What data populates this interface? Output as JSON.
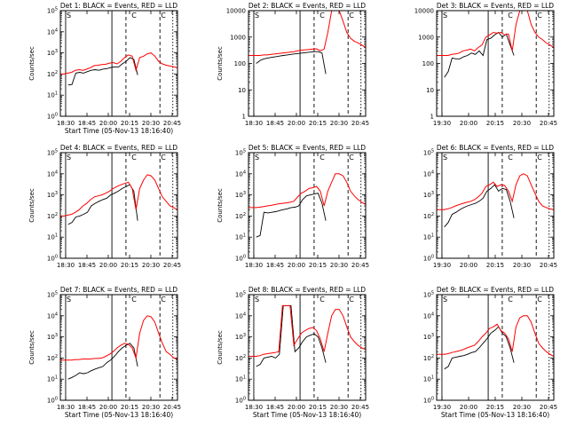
{
  "colors": {
    "events": "#000000",
    "lld": "#ff0000",
    "axes": "#000000",
    "background": "#ffffff"
  },
  "chart_data": [
    {
      "type": "line",
      "title": "Det 1: BLACK = Events, RED = LLD",
      "ylabel": "Counts/sec",
      "xlabel": "Start Time (05-Nov-13 18:16:40)",
      "x_ticks": [
        "18:30",
        "18:45",
        "20:00",
        "20:15",
        "20:30",
        "20:45"
      ],
      "y_scale": "log",
      "ylim": [
        1,
        100000
      ],
      "y_ticks": [
        "10^0",
        "10^1",
        "10^2",
        "10^3",
        "10^4",
        "10^5"
      ],
      "markers": [
        "S",
        "C",
        "C"
      ],
      "series": [
        {
          "color": "#000000",
          "y": [
            null,
            null,
            30,
            32,
            110,
            120,
            110,
            130,
            150,
            160,
            150,
            170,
            180,
            200,
            220,
            210,
            300,
            400,
            600,
            500,
            90
          ]
        },
        {
          "color": "#ff0000",
          "y": [
            100,
            100,
            110,
            120,
            150,
            160,
            150,
            170,
            200,
            250,
            260,
            280,
            290,
            330,
            350,
            300,
            400,
            600,
            800,
            700,
            150,
            600,
            700,
            900,
            1000,
            700,
            400,
            300,
            260,
            240,
            220,
            200
          ]
        }
      ]
    },
    {
      "type": "line",
      "title": "Det 2: BLACK = Events, RED = LLD",
      "ylabel": "Counts/sec",
      "xlabel": "",
      "x_ticks": [
        "18:30",
        "18:45",
        "20:00",
        "20:15",
        "20:30",
        "20:45"
      ],
      "y_scale": "log",
      "ylim": [
        1,
        10000
      ],
      "y_ticks": [
        "1",
        "10",
        "100",
        "1000",
        "10000"
      ],
      "markers": [
        "S",
        "C",
        "C"
      ],
      "series": [
        {
          "color": "#000000",
          "y": [
            null,
            null,
            100,
            130,
            150,
            160,
            170,
            180,
            190,
            200,
            210,
            220,
            230,
            240,
            250,
            260,
            270,
            280,
            280,
            250,
            40
          ]
        },
        {
          "color": "#ff0000",
          "y": [
            200,
            200,
            200,
            200,
            210,
            210,
            220,
            230,
            240,
            250,
            260,
            270,
            280,
            300,
            320,
            330,
            340,
            350,
            360,
            300,
            350,
            1500,
            10000,
            10000,
            10000,
            4000,
            1500,
            900,
            700,
            600,
            500,
            400
          ]
        }
      ]
    },
    {
      "type": "line",
      "title": "Det 3: BLACK = Events, RED = LLD",
      "ylabel": "",
      "xlabel": "",
      "x_ticks": [
        "19:30",
        "20:00",
        "20:15",
        "20:30",
        "20:45"
      ],
      "y_scale": "log",
      "ylim": [
        1,
        10000
      ],
      "y_ticks": [
        "1",
        "10",
        "100",
        "1000",
        "10000"
      ],
      "markers": [
        "S",
        "C",
        "C"
      ],
      "series": [
        {
          "color": "#000000",
          "y": [
            null,
            null,
            30,
            50,
            160,
            150,
            150,
            180,
            200,
            250,
            220,
            300,
            200,
            800,
            900,
            1200,
            1500,
            1000,
            1300,
            500,
            200
          ]
        },
        {
          "color": "#ff0000",
          "y": [
            200,
            200,
            200,
            200,
            220,
            230,
            250,
            300,
            320,
            350,
            300,
            400,
            500,
            1000,
            1200,
            1500,
            1400,
            1500,
            1200,
            1300,
            300,
            3000,
            10000,
            10000,
            10000,
            3000,
            1500,
            1000,
            800,
            600,
            500,
            400
          ]
        }
      ]
    },
    {
      "type": "line",
      "title": "Det 4: BLACK = Events, RED = LLD",
      "ylabel": "Counts/sec",
      "xlabel": "",
      "x_ticks": [
        "18:30",
        "18:45",
        "20:00",
        "20:15",
        "20:30",
        "20:45"
      ],
      "y_scale": "log",
      "ylim": [
        1,
        100000
      ],
      "y_ticks": [
        "10^0",
        "10^1",
        "10^2",
        "10^3",
        "10^4",
        "10^5"
      ],
      "markers": [
        "S",
        "C",
        "C"
      ],
      "series": [
        {
          "color": "#000000",
          "y": [
            null,
            null,
            40,
            50,
            90,
            100,
            120,
            150,
            300,
            400,
            500,
            600,
            700,
            1000,
            1200,
            1500,
            2000,
            2500,
            3000,
            1500,
            60
          ]
        },
        {
          "color": "#ff0000",
          "y": [
            100,
            100,
            110,
            120,
            150,
            200,
            300,
            400,
            600,
            800,
            900,
            1000,
            1200,
            1500,
            2000,
            2500,
            3000,
            3500,
            4000,
            2000,
            200,
            2000,
            5000,
            9000,
            8000,
            5000,
            2000,
            800,
            500,
            300,
            250,
            200
          ]
        }
      ]
    },
    {
      "type": "line",
      "title": "Det 5: BLACK = Events, RED = LLD",
      "ylabel": "Counts/sec",
      "xlabel": "",
      "x_ticks": [
        "18:30",
        "18:45",
        "20:00",
        "20:15",
        "20:30",
        "20:45"
      ],
      "y_scale": "log",
      "ylim": [
        1,
        100000
      ],
      "y_ticks": [
        "10^0",
        "10^1",
        "10^2",
        "10^3",
        "10^4",
        "10^5"
      ],
      "markers": [
        "S",
        "C",
        "C"
      ],
      "series": [
        {
          "color": "#000000",
          "y": [
            null,
            null,
            10,
            12,
            150,
            140,
            150,
            160,
            180,
            200,
            220,
            250,
            260,
            300,
            600,
            900,
            1000,
            1100,
            1200,
            400,
            60
          ]
        },
        {
          "color": "#ff0000",
          "y": [
            250,
            250,
            250,
            260,
            280,
            300,
            320,
            350,
            380,
            400,
            420,
            450,
            500,
            800,
            1200,
            1500,
            2000,
            2200,
            2500,
            1500,
            300,
            1500,
            4000,
            10000,
            10000,
            8000,
            4000,
            1500,
            900,
            600,
            450,
            350
          ]
        }
      ]
    },
    {
      "type": "line",
      "title": "Det 6: BLACK = Events, RED = LLD",
      "ylabel": "",
      "xlabel": "",
      "x_ticks": [
        "19:30",
        "20:00",
        "20:15",
        "20:30",
        "20:45"
      ],
      "y_scale": "log",
      "ylim": [
        1,
        100000
      ],
      "y_ticks": [
        "10^0",
        "10^1",
        "10^2",
        "10^3",
        "10^4",
        "10^5"
      ],
      "markers": [
        "S",
        "C",
        "C"
      ],
      "series": [
        {
          "color": "#000000",
          "y": [
            null,
            null,
            30,
            50,
            120,
            150,
            200,
            250,
            300,
            350,
            400,
            500,
            700,
            1500,
            2000,
            3000,
            1500,
            2000,
            1800,
            500,
            80
          ]
        },
        {
          "color": "#ff0000",
          "y": [
            200,
            200,
            200,
            220,
            250,
            300,
            350,
            400,
            450,
            500,
            600,
            800,
            1200,
            2500,
            3000,
            4000,
            2500,
            3000,
            2800,
            1500,
            500,
            3000,
            8000,
            10000,
            8000,
            3000,
            1200,
            500,
            300,
            250,
            220,
            200
          ]
        }
      ]
    },
    {
      "type": "line",
      "title": "Det 7: BLACK = Events, RED = LLD",
      "ylabel": "Counts/sec",
      "xlabel": "Start Time (05-Nov-13 18:16:40)",
      "x_ticks": [
        "18:30",
        "18:45",
        "20:00",
        "20:15",
        "20:30",
        "20:45"
      ],
      "y_scale": "log",
      "ylim": [
        1,
        100000
      ],
      "y_ticks": [
        "10^0",
        "10^1",
        "10^2",
        "10^3",
        "10^4",
        "10^5"
      ],
      "markers": [
        "S",
        "C",
        "C"
      ],
      "series": [
        {
          "color": "#000000",
          "y": [
            null,
            null,
            10,
            12,
            15,
            20,
            18,
            20,
            25,
            30,
            35,
            40,
            60,
            80,
            120,
            200,
            300,
            400,
            500,
            300,
            40
          ]
        },
        {
          "color": "#ff0000",
          "y": [
            80,
            80,
            80,
            80,
            85,
            85,
            90,
            90,
            90,
            95,
            95,
            100,
            120,
            150,
            200,
            300,
            400,
            500,
            450,
            300,
            100,
            1500,
            6000,
            10000,
            9000,
            5000,
            1500,
            500,
            200,
            150,
            100,
            90
          ]
        }
      ]
    },
    {
      "type": "line",
      "title": "Det 8: BLACK = Events, RED = LLD",
      "ylabel": "Counts/sec",
      "xlabel": "Start Time (05-Nov-13 18:16:40)",
      "x_ticks": [
        "18:30",
        "18:45",
        "20:00",
        "20:15",
        "20:30",
        "20:45"
      ],
      "y_scale": "log",
      "ylim": [
        1,
        100000
      ],
      "y_ticks": [
        "10^0",
        "10^1",
        "10^2",
        "10^3",
        "10^4",
        "10^5"
      ],
      "markers": [
        "S",
        "C",
        "C"
      ],
      "series": [
        {
          "color": "#000000",
          "y": [
            null,
            null,
            40,
            50,
            100,
            110,
            120,
            100,
            150,
            30000,
            30000,
            30000,
            200,
            300,
            600,
            1000,
            1200,
            1400,
            1000,
            300,
            60
          ]
        },
        {
          "color": "#ff0000",
          "y": [
            120,
            120,
            120,
            130,
            150,
            160,
            170,
            180,
            200,
            30000,
            30000,
            30000,
            400,
            800,
            1500,
            2000,
            2500,
            2800,
            2000,
            800,
            200,
            1500,
            10000,
            20000,
            20000,
            10000,
            3000,
            1000,
            600,
            400,
            300,
            250
          ]
        }
      ]
    },
    {
      "type": "line",
      "title": "Det 9: BLACK = Events, RED = LLD",
      "ylabel": "",
      "xlabel": "Start Time (05-Nov-13 18:16:40)",
      "x_ticks": [
        "19:30",
        "20:00",
        "20:15",
        "20:30",
        "20:45"
      ],
      "y_scale": "log",
      "ylim": [
        1,
        100000
      ],
      "y_ticks": [
        "10^0",
        "10^1",
        "10^2",
        "10^3",
        "10^4",
        "10^5"
      ],
      "markers": [
        "S",
        "C",
        "C"
      ],
      "series": [
        {
          "color": "#000000",
          "y": [
            null,
            null,
            30,
            40,
            100,
            110,
            120,
            130,
            150,
            180,
            200,
            300,
            500,
            800,
            1500,
            2000,
            3000,
            1500,
            1000,
            300,
            60
          ]
        },
        {
          "color": "#ff0000",
          "y": [
            150,
            150,
            150,
            160,
            180,
            200,
            220,
            250,
            300,
            350,
            400,
            600,
            1000,
            1500,
            2500,
            3000,
            4000,
            2000,
            1500,
            800,
            200,
            3000,
            8000,
            10000,
            10000,
            5000,
            1500,
            500,
            300,
            200,
            150,
            120
          ]
        }
      ]
    }
  ]
}
